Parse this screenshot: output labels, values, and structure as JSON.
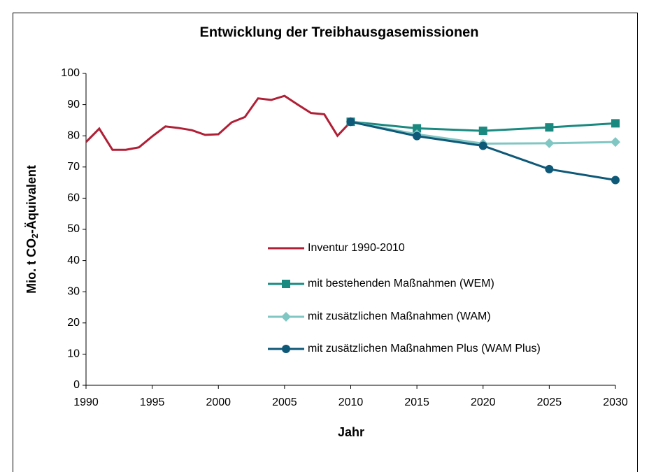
{
  "chart_data": {
    "type": "line",
    "title": "Entwicklung der Treibhausgasemissionen",
    "x_label": "Jahr",
    "y_label": [
      "Mio. t CO",
      "2",
      "-Äquivalent"
    ],
    "xlim": [
      1990,
      2030
    ],
    "xticks": [
      1990,
      1995,
      2000,
      2005,
      2010,
      2015,
      2020,
      2025,
      2030
    ],
    "ylim": [
      0,
      100
    ],
    "yticks": [
      0,
      10,
      20,
      30,
      40,
      50,
      60,
      70,
      80,
      90,
      100
    ],
    "grid": false,
    "series": [
      {
        "name": "Inventur 1990-2010",
        "color": "#b01f35",
        "marker": "none",
        "x": [
          1990,
          1991,
          1992,
          1993,
          1994,
          1995,
          1996,
          1997,
          1998,
          1999,
          2000,
          2001,
          2002,
          2003,
          2004,
          2005,
          2006,
          2007,
          2008,
          2009,
          2010
        ],
        "values": [
          78,
          82.3,
          75.5,
          75.5,
          76.3,
          79.8,
          83,
          82.5,
          81.8,
          80.3,
          80.5,
          84.3,
          86,
          92,
          91.5,
          92.8,
          90,
          87.3,
          86.9,
          80,
          84.5
        ]
      },
      {
        "name": "mit bestehenden Maßnahmen (WEM)",
        "color": "#1a8a80",
        "marker": "square",
        "x": [
          2010,
          2015,
          2020,
          2025,
          2030
        ],
        "values": [
          84.5,
          82.4,
          81.6,
          82.7,
          84
        ]
      },
      {
        "name": "mit zusätzlichen Maßnahmen (WAM)",
        "color": "#80c6c3",
        "marker": "diamond",
        "x": [
          2010,
          2015,
          2020,
          2025,
          2030
        ],
        "values": [
          84.5,
          80.5,
          77.5,
          77.6,
          78
        ]
      },
      {
        "name": "mit zusätzlichen Maßnahmen Plus (WAM Plus)",
        "color": "#0e5878",
        "marker": "circle",
        "x": [
          2010,
          2015,
          2020,
          2025,
          2030
        ],
        "values": [
          84.5,
          79.9,
          76.8,
          69.3,
          65.8
        ]
      }
    ]
  }
}
